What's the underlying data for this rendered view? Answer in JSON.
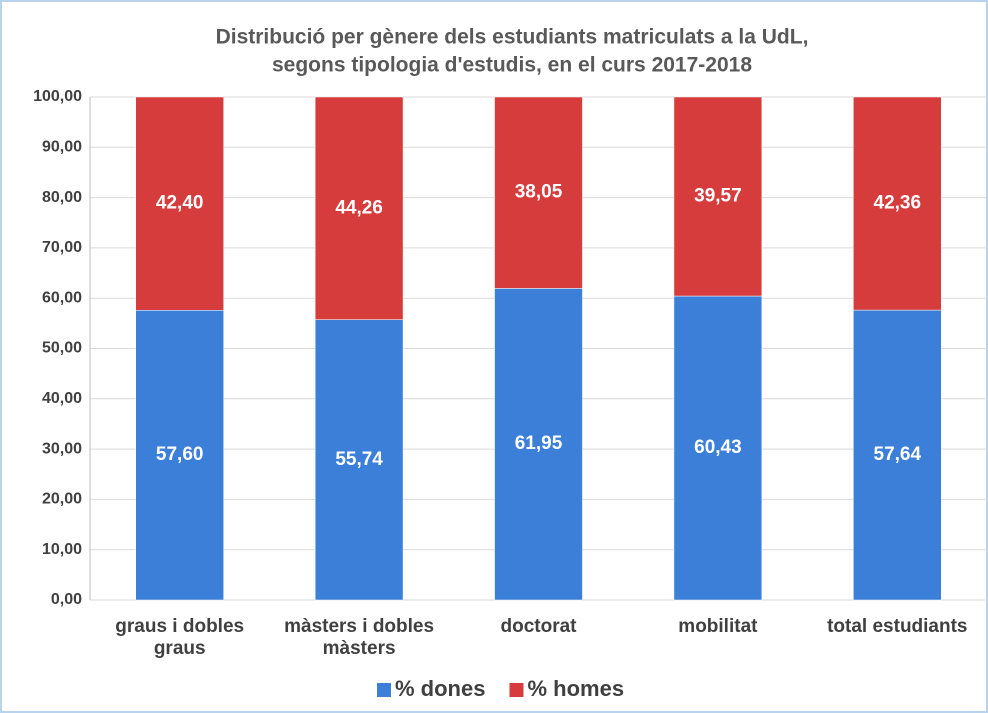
{
  "chart_data": {
    "type": "stacked_bar",
    "title": [
      "Distribució per gènere dels estudiants matriculats a la UdL,",
      "segons tipologia d'estudis, en el curs 2017-2018"
    ],
    "categories": [
      "graus i dobles graus",
      "màsters i dobles màsters",
      "doctorat",
      "mobilitat",
      "total estudiants"
    ],
    "series": [
      {
        "name": "% dones",
        "color": "#3b7fd8",
        "values": [
          57.6,
          55.74,
          61.95,
          60.43,
          57.64
        ],
        "value_labels": [
          "57,60",
          "55,74",
          "61,95",
          "60,43",
          "57,64"
        ]
      },
      {
        "name": "% homes",
        "color": "#d63c3c",
        "values": [
          42.4,
          44.26,
          38.05,
          39.57,
          42.36
        ],
        "value_labels": [
          "42,40",
          "44,26",
          "38,05",
          "39,57",
          "42,36"
        ]
      }
    ],
    "ylim": [
      0,
      100
    ],
    "yticks": [
      {
        "value": 0,
        "label": "0,00"
      },
      {
        "value": 10,
        "label": "10,00"
      },
      {
        "value": 20,
        "label": "20,00"
      },
      {
        "value": 30,
        "label": "30,00"
      },
      {
        "value": 40,
        "label": "40,00"
      },
      {
        "value": 50,
        "label": "50,00"
      },
      {
        "value": 60,
        "label": "60,00"
      },
      {
        "value": 70,
        "label": "70,00"
      },
      {
        "value": 80,
        "label": "80,00"
      },
      {
        "value": 90,
        "label": "90,00"
      },
      {
        "value": 100,
        "label": "100,00"
      }
    ],
    "grid": true,
    "legend": "bottom"
  }
}
